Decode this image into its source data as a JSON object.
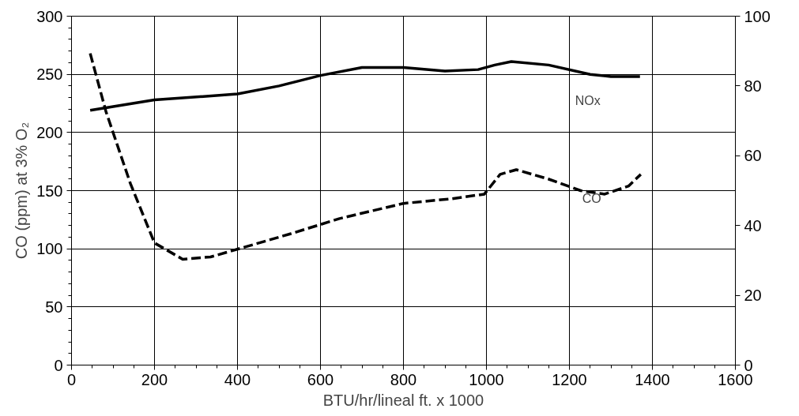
{
  "chart_data": {
    "type": "line",
    "xlabel": "BTU/hr/lineal ft. x 1000",
    "ylabel": "CO (ppm) at 3% O₂",
    "xlim": [
      0,
      1600
    ],
    "xticks": [
      0,
      200,
      400,
      600,
      800,
      1000,
      1200,
      1400,
      1600
    ],
    "ylim": [
      0,
      300
    ],
    "yticks": [
      0,
      50,
      100,
      150,
      200,
      250,
      300
    ],
    "y2lim": [
      0,
      100
    ],
    "y2ticks": [
      0,
      20,
      40,
      60,
      80,
      100
    ],
    "grid": true,
    "marker": "none",
    "series": [
      {
        "color": "#000000",
        "line_style": "solid",
        "axis": "y2",
        "x": [
          45,
          200,
          400,
          500,
          600,
          700,
          800,
          900,
          980,
          1020,
          1060,
          1150,
          1250,
          1300,
          1370
        ],
        "values": [
          73,
          76,
          77.7,
          80,
          83,
          85.3,
          85.3,
          84.3,
          84.7,
          86,
          87,
          86,
          83.3,
          82.7,
          82.7
        ]
      },
      {
        "color": "#000000",
        "line_style": "dashed",
        "x": [
          45,
          83,
          142,
          200,
          268,
          335,
          413,
          529,
          646,
          800,
          916,
          995,
          1033,
          1072,
          1149,
          1227,
          1285,
          1343,
          1372
        ],
        "values": [
          268,
          218,
          156,
          105,
          91,
          93,
          101,
          113,
          126,
          139,
          143,
          147,
          164,
          168,
          160,
          150,
          147,
          154,
          164
        ]
      }
    ],
    "annotations": [
      "NOx",
      "CO"
    ]
  }
}
